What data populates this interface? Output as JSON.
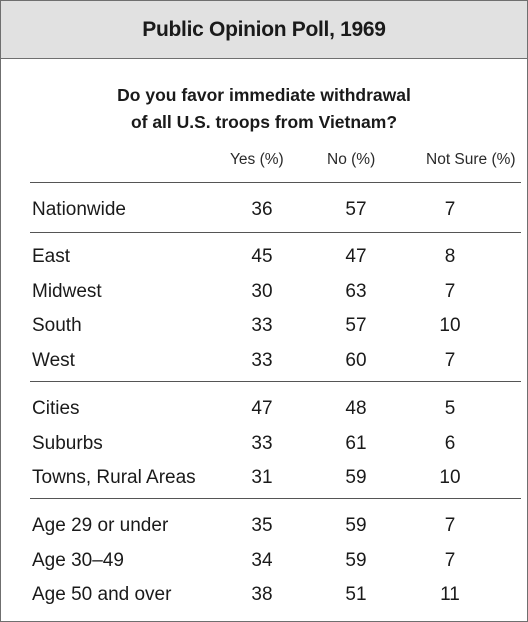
{
  "chart_data": {
    "type": "table",
    "title": "Public Opinion Poll, 1969",
    "subtitle_line1": "Do you favor immediate withdrawal",
    "subtitle_line2": "of all U.S. troops from Vietnam?",
    "columns": [
      "Yes (%)",
      "No (%)",
      "Not Sure (%)"
    ],
    "groups": [
      {
        "rows": [
          {
            "label": "Nationwide",
            "values": [
              36,
              57,
              7
            ]
          }
        ]
      },
      {
        "rows": [
          {
            "label": "East",
            "values": [
              45,
              47,
              8
            ]
          },
          {
            "label": "Midwest",
            "values": [
              30,
              63,
              7
            ]
          },
          {
            "label": "South",
            "values": [
              33,
              57,
              10
            ]
          },
          {
            "label": "West",
            "values": [
              33,
              60,
              7
            ]
          }
        ]
      },
      {
        "rows": [
          {
            "label": "Cities",
            "values": [
              47,
              48,
              5
            ]
          },
          {
            "label": "Suburbs",
            "values": [
              33,
              61,
              6
            ]
          },
          {
            "label": "Towns, Rural Areas",
            "values": [
              31,
              59,
              10
            ]
          }
        ]
      },
      {
        "rows": [
          {
            "label": "Age 29 or under",
            "values": [
              35,
              59,
              7
            ]
          },
          {
            "label": "Age 30–49",
            "values": [
              34,
              59,
              7
            ]
          },
          {
            "label": "Age 50 and over",
            "values": [
              38,
              51,
              11
            ]
          }
        ]
      }
    ]
  }
}
